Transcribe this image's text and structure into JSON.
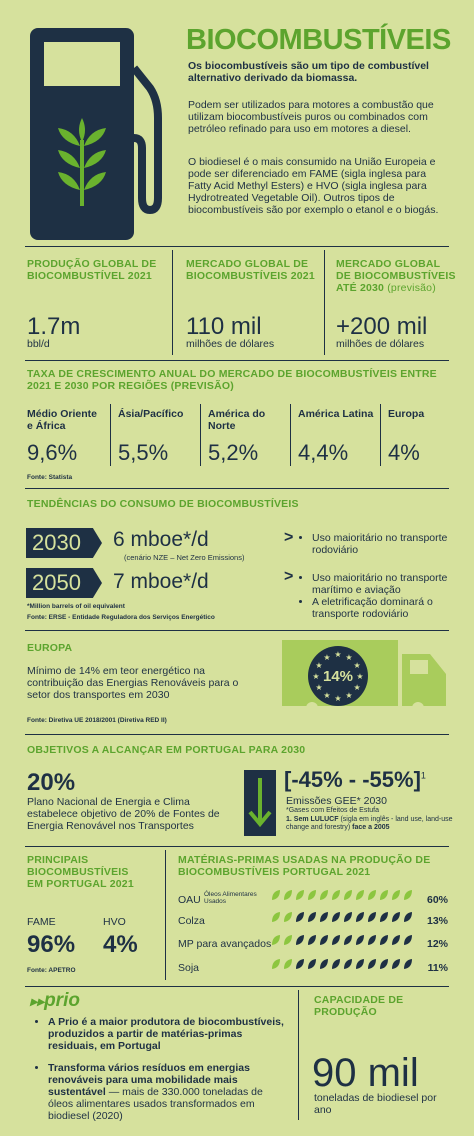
{
  "header": {
    "title": "BIOCOMBUSTÍVEIS",
    "intro": "Os biocombustíveis são um tipo de combustível alternativo derivado da biomassa.",
    "paragraphs": [
      "Podem ser utilizados para motores a combustão que utilizam biocombustíveis puros ou combinados com petróleo refinado para uso em motores a diesel.",
      "O biodiesel é o mais consumido na União Europeia e pode ser diferenciado em FAME (sigla inglesa para Fatty Acid Methyl Esters) e HVO (sigla inglesa para Hydrotreated Vegetable Oil). Outros tipos de biocombustíveis são por exemplo o etanol e o biogás."
    ]
  },
  "stats": [
    {
      "label": "PRODUÇÃO GLOBAL DE BIOCOMBUSTÍVEL 2021",
      "value": "1.7m",
      "unit": "bbl/d"
    },
    {
      "label": "MERCADO GLOBAL DE BIOCOMBUSTÍVEIS 2021",
      "value": "110 mil",
      "unit": "milhões de dólares"
    },
    {
      "label": "MERCADO GLOBAL DE BIOCOMBUSTÍVEIS ATÉ 2030",
      "label_note": "(previsão)",
      "value": "+200 mil",
      "unit": "milhões de dólares"
    }
  ],
  "growth": {
    "title": "TAXA DE CRESCIMENTO ANUAL DO MERCADO DE BIOCOMBUSTÍVEIS ENTRE 2021 E 2030 POR REGIÕES (PREVISÃO)",
    "regions": [
      {
        "name": "Médio Oriente e África",
        "value": "9,6%"
      },
      {
        "name": "Ásia/Pacífico",
        "value": "5,5%"
      },
      {
        "name": "América do Norte",
        "value": "5,2%"
      },
      {
        "name": "América Latina",
        "value": "4,4%"
      },
      {
        "name": "Europa",
        "value": "4%"
      }
    ],
    "source": "Fonte: Statista"
  },
  "trends": {
    "title": "TENDÊNCIAS DO CONSUMO DE BIOCOMBUSTÍVEIS",
    "rows": [
      {
        "year": "2030",
        "value": "6 mboe*/d",
        "note": "(cenário NZE – Net Zero Emissions)",
        "bullets": [
          "Uso maioritário no transporte rodoviário"
        ]
      },
      {
        "year": "2050",
        "value": "7 mboe*/d",
        "bullets": [
          "Uso maioritário no transporte marítimo e aviação",
          "A eletrificação dominará o transporte rodoviário"
        ]
      }
    ],
    "footnote": "*Million barrels of oil equivalent",
    "source": "Fonte: ERSE - Entidade Reguladora dos Serviços Energético"
  },
  "europe": {
    "title": "EUROPA",
    "text": "Mínimo de 14% em teor energético na contribuição das Energias Renováveis para o setor dos transportes em 2030",
    "badge": "14%",
    "source": "Fonte: Diretiva UE 2018/2001 (Diretiva RED II)"
  },
  "portugal": {
    "title": "OBJETIVOS A ALCANÇAR EM PORTUGAL PARA 2030",
    "target_value": "20%",
    "target_text": "Plano Nacional de Energia e Clima estabelece objetivo de 20% de Fontes de Energia Renovável nos Transportes",
    "range": "[-45% - -55%]",
    "range_sup": "1",
    "emissions": "Emissões GEE* 2030",
    "emissions_note": "*Gases com Efeitos de Estufa",
    "footnote_bold": "1. Sem LULUCF",
    "footnote_text": "(sigla em inglês - land use, land-use change and forestry)",
    "footnote_end": "face a 2005"
  },
  "main_fuels": {
    "title": "PRINCIPAIS BIOCOMBUSTÍVEIS EM PORTUGAL 2021",
    "items": [
      {
        "name": "FAME",
        "value": "96%"
      },
      {
        "name": "HVO",
        "value": "4%"
      }
    ],
    "source": "Fonte: APETRO"
  },
  "raw_materials": {
    "title": "MATÉRIAS-PRIMAS USADAS NA PRODUÇÃO DE BIOCOMBUSTÍVEIS PORTUGAL 2021",
    "rows": [
      {
        "name": "OAU",
        "detail": "Óleos Alimentares Usados",
        "value": "60%"
      },
      {
        "name": "Colza",
        "value": "13%"
      },
      {
        "name": "MP para avançados",
        "value": "12%"
      },
      {
        "name": "Soja",
        "value": "11%"
      }
    ]
  },
  "prio": {
    "logo": "prio",
    "bullet_1": "A Prio é a maior produtora de biocombustíveis, produzidos a partir de matérias-primas residuais, em Portugal",
    "bullet_2_bold": "Transforma vários resíduos em energias renováveis para uma mobilidade mais sustentável",
    "bullet_2_text": "— mais de 330.000 toneladas de óleos alimentares usados transformados em biodiesel (2020)"
  },
  "capacity": {
    "title": "CAPACIDADE DE PRODUÇÃO",
    "value": "90 mil",
    "unit": "toneladas de biodiesel por ano"
  }
}
